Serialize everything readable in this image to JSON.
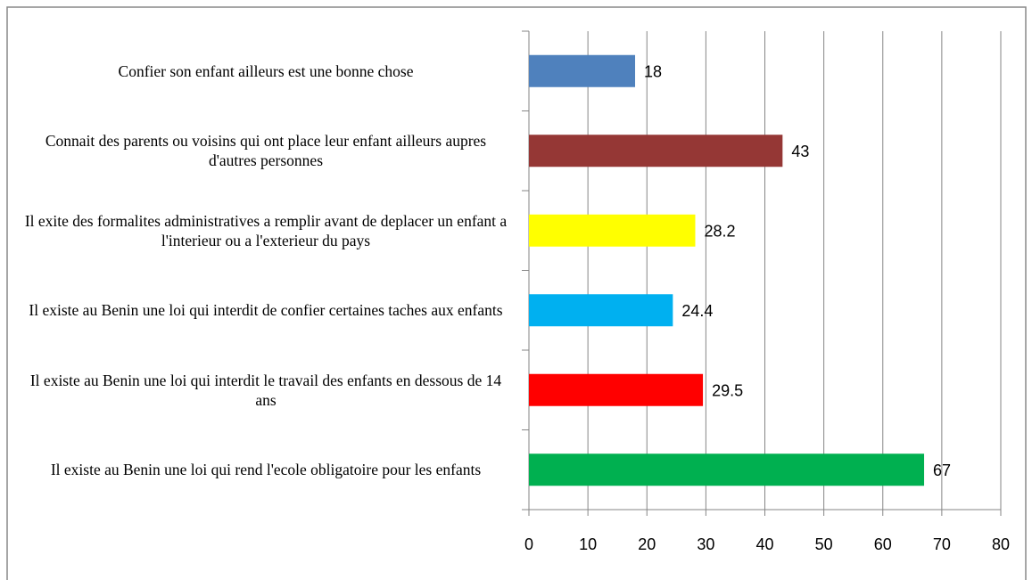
{
  "chart_data": {
    "type": "bar",
    "orientation": "horizontal",
    "categories": [
      "Confier son enfant ailleurs est une bonne chose",
      "Connait des parents ou voisins qui ont place leur enfant ailleurs aupres d'autres personnes",
      "Il exite des formalites administratives a remplir avant de deplacer un enfant a l'interieur ou a l'exterieur du pays",
      "Il existe au Benin une loi qui interdit de confier certaines taches aux enfants",
      "Il existe au Benin une loi qui interdit le travail des enfants en dessous de 14 ans",
      "Il existe au Benin une loi qui rend l'ecole obligatoire pour les enfants"
    ],
    "values": [
      18,
      43,
      28.2,
      24.4,
      29.5,
      67
    ],
    "colors": [
      "#4f81bd",
      "#953735",
      "#ffff00",
      "#00b0f0",
      "#ff0000",
      "#00b050"
    ],
    "xlim": [
      0,
      80
    ],
    "xticks": [
      0,
      10,
      20,
      30,
      40,
      50,
      60,
      70,
      80
    ],
    "grid": true
  }
}
